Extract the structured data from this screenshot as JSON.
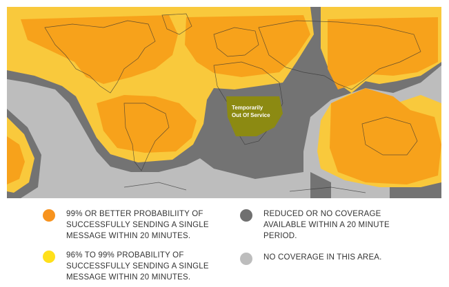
{
  "map": {
    "region_label_line1": "Temporarily",
    "region_label_line2": "Out Of Service"
  },
  "legend": {
    "items": [
      {
        "color": "#F7931E",
        "text": "99% OR BETTER PROBABILIITY OF\nSUCCESSFULLY SENDING A SINGLE\nMESSAGE WITHIN 20 MINUTES."
      },
      {
        "color": "#707070",
        "text": "REDUCED OR NO COVERAGE\nAVAILABLE WITHIN A 20 MINUTE\nPERIOD."
      },
      {
        "color": "#FFE01B",
        "text": "96% TO 99% PROBABILITY OF\nSUCCESSFULLY SENDING A SINGLE\nMESSAGE WITHIN 20 MINUTES."
      },
      {
        "color": "#BDBDBD",
        "text": "NO COVERAGE IN THIS AREA."
      }
    ]
  },
  "colors": {
    "no_coverage": "#BDBDBD",
    "reduced": "#737373",
    "partial": "#F9C93C",
    "full": "#F7A21B",
    "out_of_service": "#8C8A12"
  }
}
